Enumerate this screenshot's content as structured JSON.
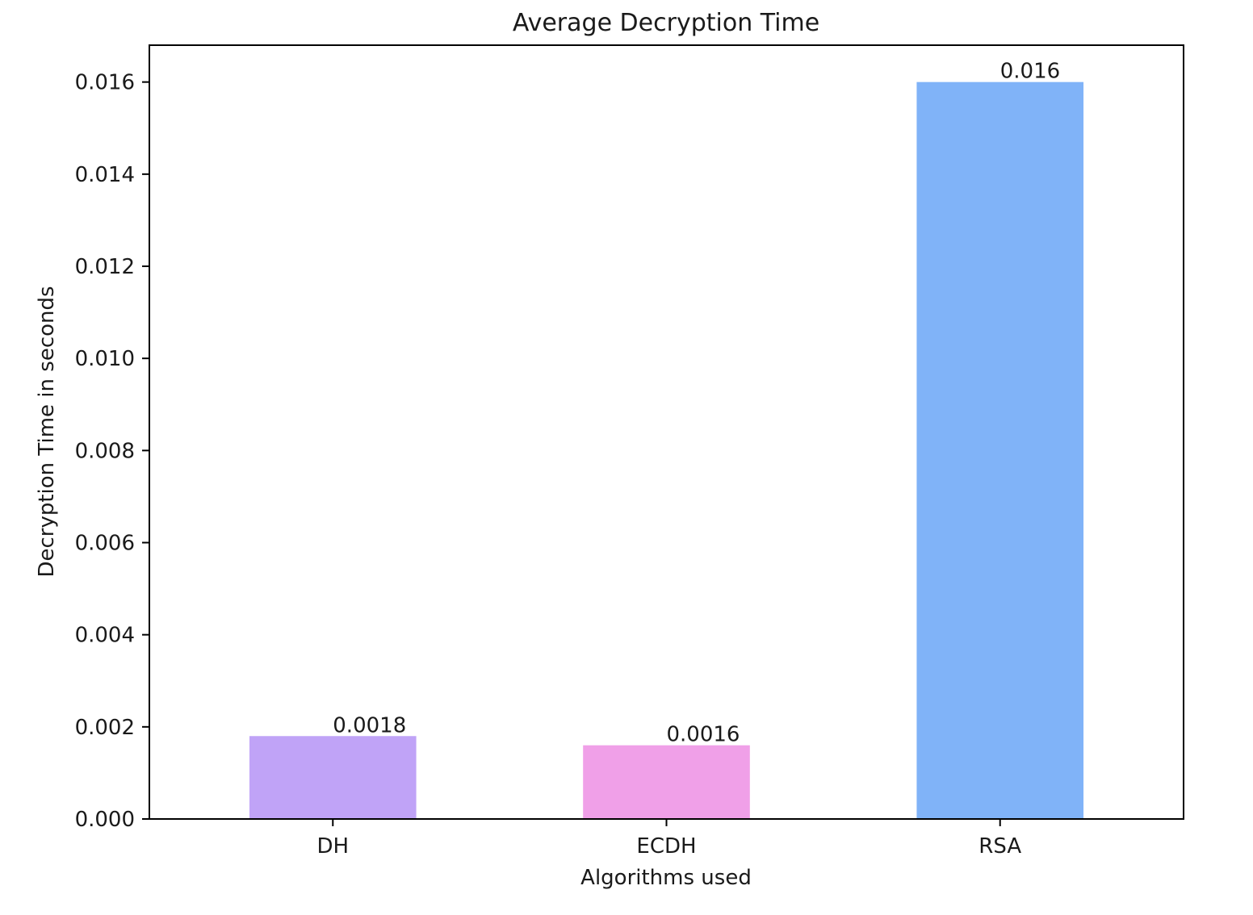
{
  "chart_data": {
    "type": "bar",
    "title": "Average Decryption Time",
    "xlabel": "Algorithms used",
    "ylabel": "Decryption Time in seconds",
    "categories": [
      "DH",
      "ECDH",
      "RSA"
    ],
    "values": [
      0.0018,
      0.0016,
      0.016
    ],
    "data_labels": [
      "0.0018",
      "0.0016",
      "0.016"
    ],
    "colors": [
      "#c0a3f7",
      "#f0a0e8",
      "#80b3f8"
    ],
    "ylim": [
      0,
      0.0168
    ],
    "yticks": [
      0,
      0.002,
      0.004,
      0.006,
      0.008,
      0.01,
      0.012,
      0.014,
      0.016
    ],
    "ytick_labels": [
      "0.000",
      "0.002",
      "0.004",
      "0.006",
      "0.008",
      "0.010",
      "0.012",
      "0.014",
      "0.016"
    ],
    "grid": false,
    "legend": "none"
  }
}
